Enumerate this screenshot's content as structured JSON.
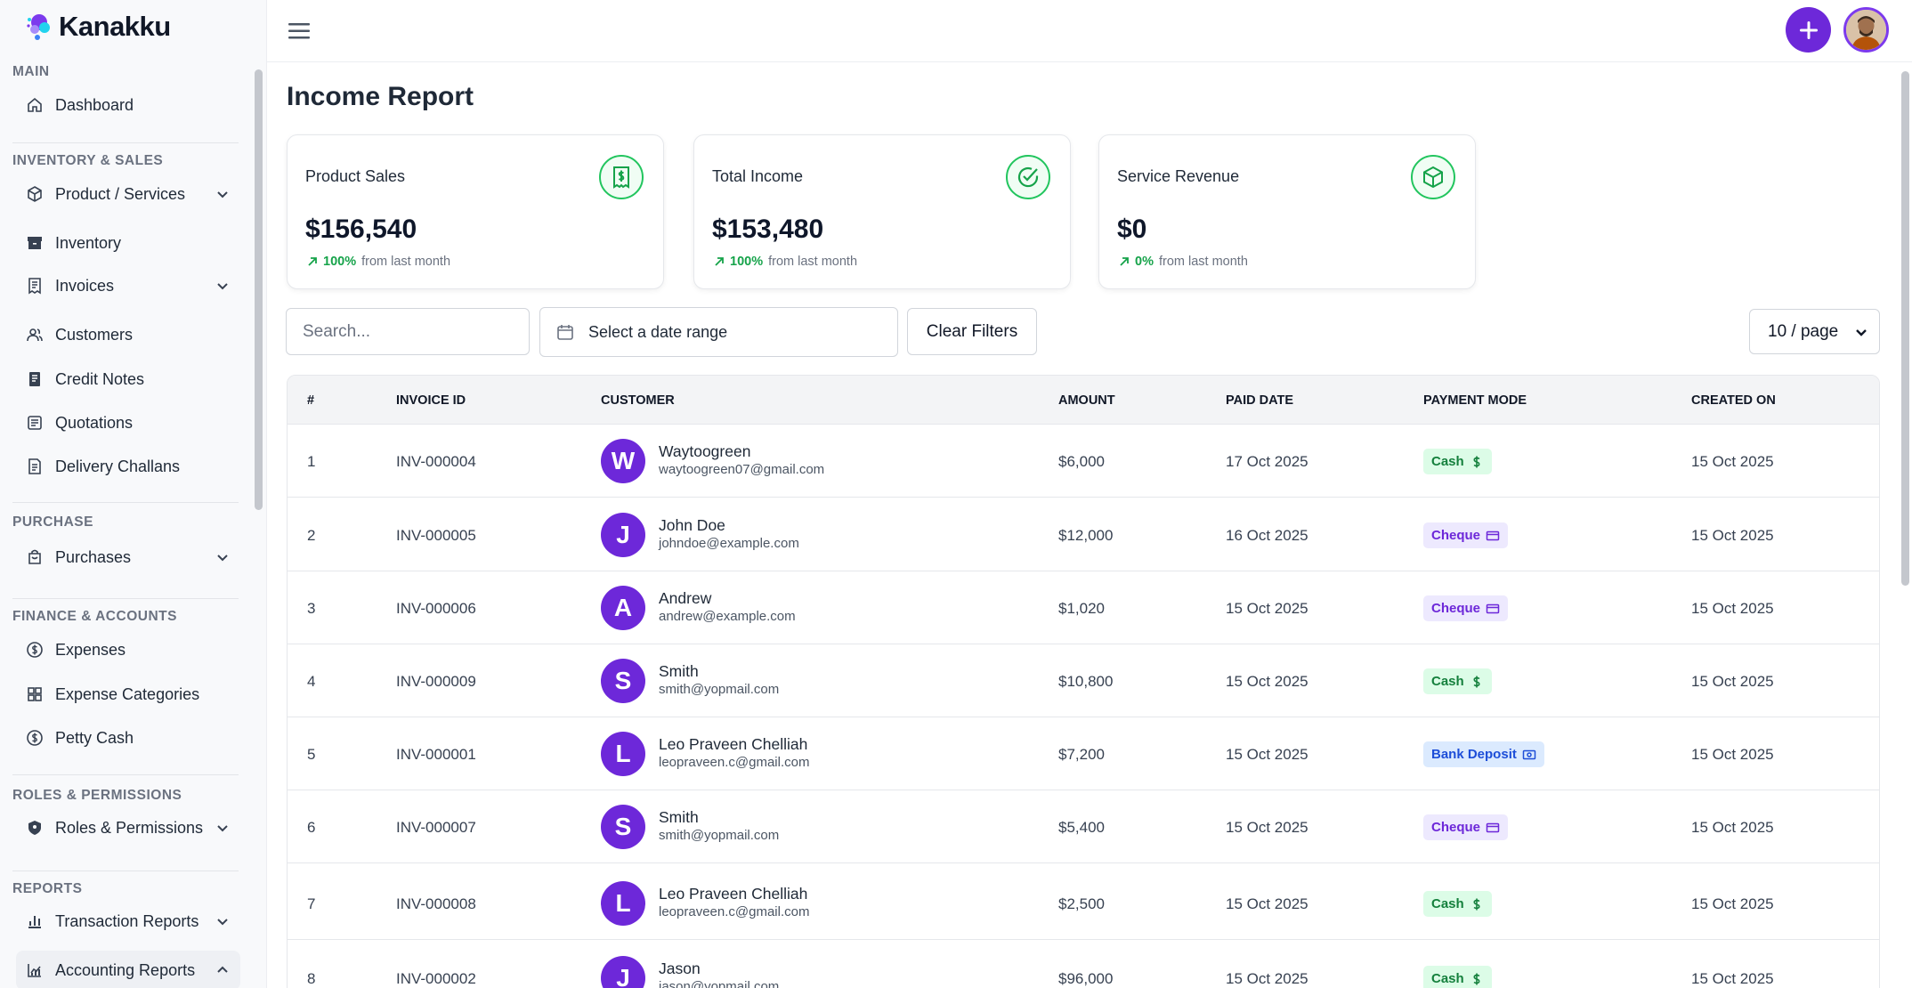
{
  "app": {
    "name": "Kanakku"
  },
  "sidebar": {
    "sections": [
      {
        "title": "MAIN",
        "items": [
          {
            "label": "Dashboard",
            "icon": "home-icon"
          }
        ]
      },
      {
        "title": "INVENTORY & SALES",
        "items": [
          {
            "label": "Product / Services",
            "icon": "box-icon",
            "expandable": true
          },
          {
            "label": "Inventory",
            "icon": "archive-icon"
          },
          {
            "label": "Invoices",
            "icon": "receipt-icon",
            "expandable": true
          },
          {
            "label": "Customers",
            "icon": "users-icon"
          },
          {
            "label": "Credit Notes",
            "icon": "note-icon"
          },
          {
            "label": "Quotations",
            "icon": "quote-icon"
          },
          {
            "label": "Delivery Challans",
            "icon": "truck-icon"
          }
        ]
      },
      {
        "title": "PURCHASE",
        "items": [
          {
            "label": "Purchases",
            "icon": "bag-icon",
            "expandable": true
          }
        ]
      },
      {
        "title": "FINANCE & ACCOUNTS",
        "items": [
          {
            "label": "Expenses",
            "icon": "dollar-circle-icon"
          },
          {
            "label": "Expense Categories",
            "icon": "grid-icon"
          },
          {
            "label": "Petty Cash",
            "icon": "dollar-circle-icon"
          }
        ]
      },
      {
        "title": "ROLES & PERMISSIONS",
        "items": [
          {
            "label": "Roles & Permissions",
            "icon": "shield-icon",
            "expandable": true
          }
        ]
      },
      {
        "title": "REPORTS",
        "items": [
          {
            "label": "Transaction Reports",
            "icon": "bar-chart-icon",
            "expandable": true
          },
          {
            "label": "Accounting Reports",
            "icon": "line-chart-icon",
            "expandable": true,
            "active": true
          }
        ]
      }
    ]
  },
  "page": {
    "title": "Income Report"
  },
  "cards": [
    {
      "title": "Product Sales",
      "value": "$156,540",
      "pct": "100%",
      "trend_text": "from last month",
      "icon": "receipt-dollar-icon"
    },
    {
      "title": "Total Income",
      "value": "$153,480",
      "pct": "100%",
      "trend_text": "from last month",
      "icon": "check-circle-icon"
    },
    {
      "title": "Service Revenue",
      "value": "$0",
      "pct": "0%",
      "trend_text": "from last month",
      "icon": "cube-icon"
    }
  ],
  "filters": {
    "search_placeholder": "Search...",
    "date_range_label": "Select a date range",
    "clear_label": "Clear Filters",
    "page_size_label": "10 / page"
  },
  "table": {
    "columns": [
      "#",
      "INVOICE ID",
      "CUSTOMER",
      "AMOUNT",
      "PAID DATE",
      "PAYMENT MODE",
      "CREATED ON"
    ],
    "rows": [
      {
        "num": "1",
        "invoice": "INV-000004",
        "initial": "W",
        "name": "Waytoogreen",
        "email": "waytoogreen07@gmail.com",
        "amount": "$6,000",
        "paid": "17 Oct 2025",
        "mode": "Cash",
        "mode_type": "cash",
        "created": "15 Oct 2025"
      },
      {
        "num": "2",
        "invoice": "INV-000005",
        "initial": "J",
        "name": "John Doe",
        "email": "johndoe@example.com",
        "amount": "$12,000",
        "paid": "16 Oct 2025",
        "mode": "Cheque",
        "mode_type": "cheque",
        "created": "15 Oct 2025"
      },
      {
        "num": "3",
        "invoice": "INV-000006",
        "initial": "A",
        "name": "Andrew",
        "email": "andrew@example.com",
        "amount": "$1,020",
        "paid": "15 Oct 2025",
        "mode": "Cheque",
        "mode_type": "cheque",
        "created": "15 Oct 2025"
      },
      {
        "num": "4",
        "invoice": "INV-000009",
        "initial": "S",
        "name": "Smith",
        "email": "smith@yopmail.com",
        "amount": "$10,800",
        "paid": "15 Oct 2025",
        "mode": "Cash",
        "mode_type": "cash",
        "created": "15 Oct 2025"
      },
      {
        "num": "5",
        "invoice": "INV-000001",
        "initial": "L",
        "name": "Leo Praveen Chelliah",
        "email": "leopraveen.c@gmail.com",
        "amount": "$7,200",
        "paid": "15 Oct 2025",
        "mode": "Bank Deposit",
        "mode_type": "bank",
        "created": "15 Oct 2025"
      },
      {
        "num": "6",
        "invoice": "INV-000007",
        "initial": "S",
        "name": "Smith",
        "email": "smith@yopmail.com",
        "amount": "$5,400",
        "paid": "15 Oct 2025",
        "mode": "Cheque",
        "mode_type": "cheque",
        "created": "15 Oct 2025"
      },
      {
        "num": "7",
        "invoice": "INV-000008",
        "initial": "L",
        "name": "Leo Praveen Chelliah",
        "email": "leopraveen.c@gmail.com",
        "amount": "$2,500",
        "paid": "15 Oct 2025",
        "mode": "Cash",
        "mode_type": "cash",
        "created": "15 Oct 2025"
      },
      {
        "num": "8",
        "invoice": "INV-000002",
        "initial": "J",
        "name": "Jason",
        "email": "jason@yopmail.com",
        "amount": "$96,000",
        "paid": "15 Oct 2025",
        "mode": "Cash",
        "mode_type": "cash",
        "created": "15 Oct 2025"
      }
    ]
  },
  "colors": {
    "accent": "#6d28d9",
    "success": "#16a34a"
  }
}
